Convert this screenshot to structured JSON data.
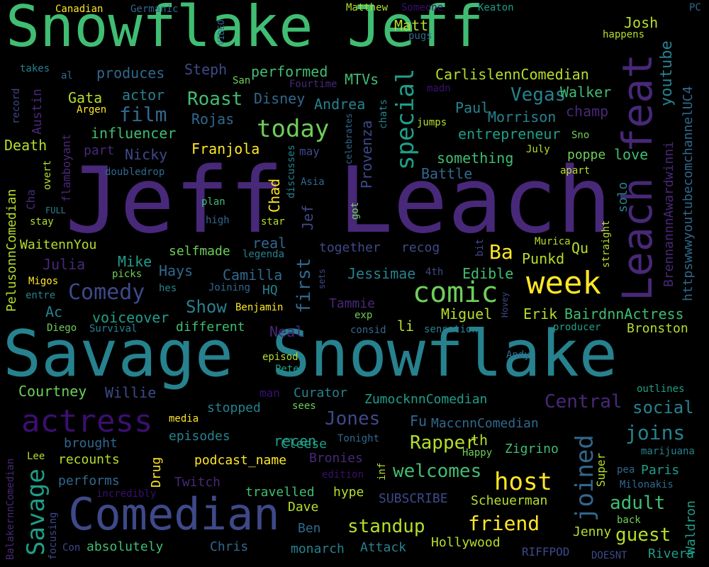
{
  "palette": {
    "purple": "#482878",
    "indigo": "#3e4989",
    "blue": "#31688e",
    "teal": "#26828e",
    "green": "#1f9e89",
    "lime": "#35b779",
    "lightgreen": "#6ece58",
    "yellowgreen": "#b5de2b",
    "yellow": "#fde725",
    "dark": "#3b0f70"
  },
  "words": [
    {
      "text": "Jeff Leach",
      "weight": 100
    },
    {
      "text": "Snowflake Jeff",
      "weight": 72
    },
    {
      "text": "Savage Snowflake",
      "weight": 78
    },
    {
      "text": "Comedian",
      "weight": 55
    },
    {
      "text": "Leach feat",
      "weight": 52
    },
    {
      "text": "week",
      "weight": 36
    },
    {
      "text": "actress",
      "weight": 34
    },
    {
      "text": "comic",
      "weight": 34
    },
    {
      "text": "Savage",
      "weight": 30
    },
    {
      "text": "special",
      "weight": 30
    },
    {
      "text": "joined",
      "weight": 30
    },
    {
      "text": "today",
      "weight": 28
    },
    {
      "text": "host",
      "weight": 28
    },
    {
      "text": "Comedy",
      "weight": 26
    },
    {
      "text": "joins",
      "weight": 24
    },
    {
      "text": "Roast",
      "weight": 22
    },
    {
      "text": "Vegas",
      "weight": 22
    },
    {
      "text": "youtube",
      "weight": 20
    },
    {
      "text": "film",
      "weight": 22
    },
    {
      "text": "friend",
      "weight": 22
    },
    {
      "text": "standup",
      "weight": 22
    },
    {
      "text": "first",
      "weight": 20
    },
    {
      "text": "guest",
      "weight": 20
    },
    {
      "text": "Rapper",
      "weight": 20
    },
    {
      "text": "welcomes",
      "weight": 20
    },
    {
      "text": "adult",
      "weight": 20
    },
    {
      "text": "Central",
      "weight": 20
    },
    {
      "text": "social",
      "weight": 20
    },
    {
      "text": "Jones",
      "weight": 20
    },
    {
      "text": "Show",
      "weight": 20
    },
    {
      "text": "Ba",
      "weight": 22
    },
    {
      "text": "Josh",
      "weight": 16
    },
    {
      "text": "Matt",
      "weight": 16
    },
    {
      "text": "Walker",
      "weight": 16
    },
    {
      "text": "Paul",
      "weight": 16
    },
    {
      "text": "Morrison",
      "weight": 16
    },
    {
      "text": "champ",
      "weight": 16
    },
    {
      "text": "Andrea",
      "weight": 16
    },
    {
      "text": "Disney",
      "weight": 16
    },
    {
      "text": "MTVs",
      "weight": 16
    },
    {
      "text": "performed",
      "weight": 16
    },
    {
      "text": "produces",
      "weight": 16
    },
    {
      "text": "Steph",
      "weight": 16
    },
    {
      "text": "actor",
      "weight": 16
    },
    {
      "text": "Gata",
      "weight": 16
    },
    {
      "text": "Austin",
      "weight": 16
    },
    {
      "text": "influencer",
      "weight": 16
    },
    {
      "text": "Rojas",
      "weight": 16
    },
    {
      "text": "Franjola",
      "weight": 16
    },
    {
      "text": "Nicky",
      "weight": 16
    },
    {
      "text": "part",
      "weight": 16
    },
    {
      "text": "Death",
      "weight": 16
    },
    {
      "text": "entrepreneur",
      "weight": 16
    },
    {
      "text": "something",
      "weight": 16
    },
    {
      "text": "Battle",
      "weight": 16
    },
    {
      "text": "poppe",
      "weight": 16
    },
    {
      "text": "love",
      "weight": 16
    },
    {
      "text": "solo",
      "weight": 16
    },
    {
      "text": "Chad",
      "weight": 16
    },
    {
      "text": "Jef",
      "weight": 16
    },
    {
      "text": "Provenza",
      "weight": 16
    },
    {
      "text": "CarlislennComedian",
      "weight": 16
    },
    {
      "text": "BrennannnAwardwinni",
      "weight": 16
    },
    {
      "text": "httpswwwyoutubecomchannelUC4",
      "weight": 16
    },
    {
      "text": "PelusonnComedian",
      "weight": 16
    },
    {
      "text": "WaitennYou",
      "weight": 16
    },
    {
      "text": "Julia",
      "weight": 16
    },
    {
      "text": "Mike",
      "weight": 16
    },
    {
      "text": "Hays",
      "weight": 16
    },
    {
      "text": "Camilla",
      "weight": 16
    },
    {
      "text": "selfmade",
      "weight": 16
    },
    {
      "text": "real",
      "weight": 16
    },
    {
      "text": "together",
      "weight": 16
    },
    {
      "text": "recog",
      "weight": 16
    },
    {
      "text": "Jessimae",
      "weight": 16
    },
    {
      "text": "Edible",
      "weight": 16
    },
    {
      "text": "Punkd",
      "weight": 16
    },
    {
      "text": "Miguel",
      "weight": 16
    },
    {
      "text": "Erik",
      "weight": 16
    },
    {
      "text": "BairdnnActress",
      "weight": 16
    },
    {
      "text": "Bronston",
      "weight": 16
    },
    {
      "text": "voiceover",
      "weight": 16
    },
    {
      "text": "different",
      "weight": 16
    },
    {
      "text": "Neal",
      "weight": 16
    },
    {
      "text": "li",
      "weight": 16
    },
    {
      "text": "Courtney",
      "weight": 16
    },
    {
      "text": "Willie",
      "weight": 16
    },
    {
      "text": "Curator",
      "weight": 16
    },
    {
      "text": "ZumocknnComedian",
      "weight": 16
    },
    {
      "text": "stopped",
      "weight": 16
    },
    {
      "text": "episodes",
      "weight": 16
    },
    {
      "text": "recen",
      "weight": 16
    },
    {
      "text": "Fu",
      "weight": 16
    },
    {
      "text": "MaccnnComedian",
      "weight": 16
    },
    {
      "text": "th",
      "weight": 16
    },
    {
      "text": "Cleese",
      "weight": 16
    },
    {
      "text": "brought",
      "weight": 16
    },
    {
      "text": "recounts",
      "weight": 16
    },
    {
      "text": "podcast_name",
      "weight": 16
    },
    {
      "text": "Bronies",
      "weight": 16
    },
    {
      "text": "Zigrino",
      "weight": 16
    },
    {
      "text": "Paris",
      "weight": 16
    },
    {
      "text": "Drug",
      "weight": 16
    },
    {
      "text": "performs",
      "weight": 16
    },
    {
      "text": "Twitch",
      "weight": 16
    },
    {
      "text": "travelled",
      "weight": 16
    },
    {
      "text": "hype",
      "weight": 16
    },
    {
      "text": "SUBSCRIBE",
      "weight": 16
    },
    {
      "text": "Scheuerman",
      "weight": 16
    },
    {
      "text": "Dave",
      "weight": 16
    },
    {
      "text": "Ben",
      "weight": 16
    },
    {
      "text": "Jenny",
      "weight": 16
    },
    {
      "text": "Rivera",
      "weight": 16
    },
    {
      "text": "Waldron",
      "weight": 16
    },
    {
      "text": "absolutely",
      "weight": 16
    },
    {
      "text": "Chris",
      "weight": 16
    },
    {
      "text": "monarch",
      "weight": 16
    },
    {
      "text": "Attack",
      "weight": 16
    },
    {
      "text": "Hollywood",
      "weight": 16
    },
    {
      "text": "RIFFPOD",
      "weight": 16
    },
    {
      "text": "Super",
      "weight": 16
    },
    {
      "text": "Ac",
      "weight": 16
    },
    {
      "text": "Tammie",
      "weight": 16
    },
    {
      "text": "HQ",
      "weight": 16
    },
    {
      "text": "Qu",
      "weight": 16
    },
    {
      "text": "Canadian",
      "weight": 10
    },
    {
      "text": "Germanic",
      "weight": 10
    },
    {
      "text": "VIDEO",
      "weight": 10
    },
    {
      "text": "Matthew",
      "weight": 10
    },
    {
      "text": "Someone",
      "weight": 10
    },
    {
      "text": "Keaton",
      "weight": 10
    },
    {
      "text": "PC",
      "weight": 10
    },
    {
      "text": "pugs",
      "weight": 10
    },
    {
      "text": "happens",
      "weight": 10
    },
    {
      "text": "takes",
      "weight": 10
    },
    {
      "text": "al",
      "weight": 10
    },
    {
      "text": "San",
      "weight": 10
    },
    {
      "text": "Fourtime",
      "weight": 10
    },
    {
      "text": "madn",
      "weight": 10
    },
    {
      "text": "record",
      "weight": 10
    },
    {
      "text": "Argen",
      "weight": 10
    },
    {
      "text": "flamboyant",
      "weight": 10
    },
    {
      "text": "Cha",
      "weight": 10
    },
    {
      "text": "celebrates",
      "weight": 10
    },
    {
      "text": "chats",
      "weight": 10
    },
    {
      "text": "jumps",
      "weight": 10
    },
    {
      "text": "Sno",
      "weight": 10
    },
    {
      "text": "July",
      "weight": 10
    },
    {
      "text": "may",
      "weight": 10
    },
    {
      "text": "apart",
      "weight": 10
    },
    {
      "text": "doubledrop",
      "weight": 10
    },
    {
      "text": "overt",
      "weight": 10
    },
    {
      "text": "discusses",
      "weight": 10
    },
    {
      "text": "Asia",
      "weight": 10
    },
    {
      "text": "FULL",
      "weight": 10
    },
    {
      "text": "plan",
      "weight": 10
    },
    {
      "text": "got",
      "weight": 10
    },
    {
      "text": "stay",
      "weight": 10
    },
    {
      "text": "high",
      "weight": 10
    },
    {
      "text": "star",
      "weight": 10
    },
    {
      "text": "legenda",
      "weight": 10
    },
    {
      "text": "Murica",
      "weight": 10
    },
    {
      "text": "bit",
      "weight": 10
    },
    {
      "text": "straight",
      "weight": 10
    },
    {
      "text": "Migos",
      "weight": 10
    },
    {
      "text": "picks",
      "weight": 10
    },
    {
      "text": "hes",
      "weight": 10
    },
    {
      "text": "Joining",
      "weight": 10
    },
    {
      "text": "sets",
      "weight": 10
    },
    {
      "text": "4th",
      "weight": 10
    },
    {
      "text": "Hovey",
      "weight": 10
    },
    {
      "text": "entre",
      "weight": 10
    },
    {
      "text": "Benjamin",
      "weight": 10
    },
    {
      "text": "exp",
      "weight": 10
    },
    {
      "text": "consid",
      "weight": 10
    },
    {
      "text": "sensation",
      "weight": 10
    },
    {
      "text": "producer",
      "weight": 10
    },
    {
      "text": "Diego",
      "weight": 10
    },
    {
      "text": "Survival",
      "weight": 10
    },
    {
      "text": "Andy",
      "weight": 10
    },
    {
      "text": "episod",
      "weight": 10
    },
    {
      "text": "Pete",
      "weight": 10
    },
    {
      "text": "outlines",
      "weight": 10
    },
    {
      "text": "man",
      "weight": 10
    },
    {
      "text": "sees",
      "weight": 10
    },
    {
      "text": "media",
      "weight": 10
    },
    {
      "text": "BalakernnComedian",
      "weight": 10
    },
    {
      "text": "Lee",
      "weight": 10
    },
    {
      "text": "Tonight",
      "weight": 10
    },
    {
      "text": "Happy",
      "weight": 10
    },
    {
      "text": "marijuana",
      "weight": 10
    },
    {
      "text": "edition",
      "weight": 10
    },
    {
      "text": "inf",
      "weight": 10
    },
    {
      "text": "pea",
      "weight": 10
    },
    {
      "text": "Milonakis",
      "weight": 10
    },
    {
      "text": "incredibly",
      "weight": 10
    },
    {
      "text": "back",
      "weight": 10
    },
    {
      "text": "focusing",
      "weight": 10
    },
    {
      "text": "Con",
      "weight": 10
    },
    {
      "text": "DOESNT",
      "weight": 10
    }
  ]
}
